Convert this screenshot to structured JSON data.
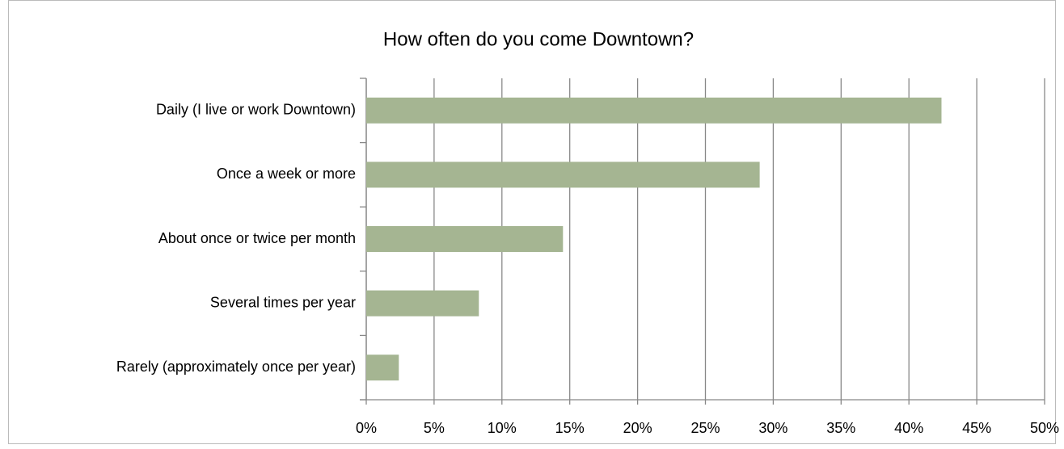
{
  "chart_data": {
    "type": "bar",
    "orientation": "horizontal",
    "title": "How often do you come Downtown?",
    "categories": [
      "Daily (I live or work Downtown)",
      "Once a week or more",
      "About once or twice per month",
      "Several times per year",
      "Rarely (approximately once per year)"
    ],
    "values": [
      42.4,
      29.0,
      14.5,
      8.3,
      2.4
    ],
    "color": "#a5b592",
    "xlim": [
      0,
      50
    ],
    "xticks": [
      {
        "value": 0,
        "label": "0%"
      },
      {
        "value": 5,
        "label": "5%"
      },
      {
        "value": 10,
        "label": "10%"
      },
      {
        "value": 15,
        "label": "15%"
      },
      {
        "value": 20,
        "label": "20%"
      },
      {
        "value": 25,
        "label": "25%"
      },
      {
        "value": 30,
        "label": "30%"
      },
      {
        "value": 35,
        "label": "35%"
      },
      {
        "value": 40,
        "label": "40%"
      },
      {
        "value": 45,
        "label": "45%"
      },
      {
        "value": 50,
        "label": "50%"
      }
    ],
    "grid": true
  }
}
